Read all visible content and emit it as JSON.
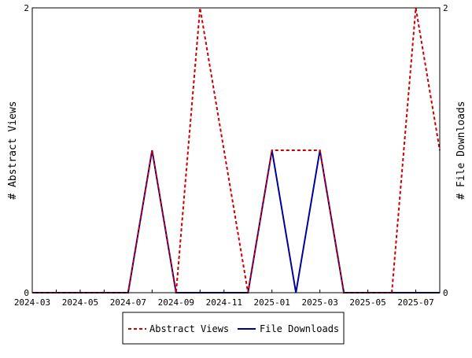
{
  "chart_data": {
    "type": "line",
    "title": "",
    "ylabel_left": "# Abstract Views",
    "ylabel_right": "# File Downloads",
    "x": [
      "2024-03",
      "2024-04",
      "2024-05",
      "2024-06",
      "2024-07",
      "2024-08",
      "2024-09",
      "2024-10",
      "2024-11",
      "2024-12",
      "2025-01",
      "2025-02",
      "2025-03",
      "2025-04",
      "2025-05",
      "2025-06",
      "2025-07",
      "2025-08"
    ],
    "x_tick_labels": [
      "2024-03",
      "2024-05",
      "2024-07",
      "2024-09",
      "2024-11",
      "2025-01",
      "2025-03",
      "2025-05",
      "2025-07"
    ],
    "ylim_left": [
      0,
      2
    ],
    "ylim_right": [
      0,
      2
    ],
    "y_tick_labels_left": [
      "0",
      "2"
    ],
    "y_tick_labels_right": [
      "0",
      "2"
    ],
    "grid": false,
    "legend_position": "bottom",
    "series": [
      {
        "name": "Abstract Views",
        "axis": "left",
        "color": "#cc0000",
        "style": "dashed",
        "values": [
          0,
          0,
          0,
          0,
          0,
          1,
          0,
          2,
          1,
          0,
          1,
          1,
          1,
          0,
          0,
          0,
          2,
          1
        ]
      },
      {
        "name": "File Downloads",
        "axis": "right",
        "color": "#000099",
        "style": "solid",
        "values": [
          0,
          0,
          0,
          0,
          0,
          1,
          0,
          0,
          0,
          0,
          1,
          0,
          1,
          0,
          0,
          0,
          0,
          0
        ]
      }
    ]
  }
}
